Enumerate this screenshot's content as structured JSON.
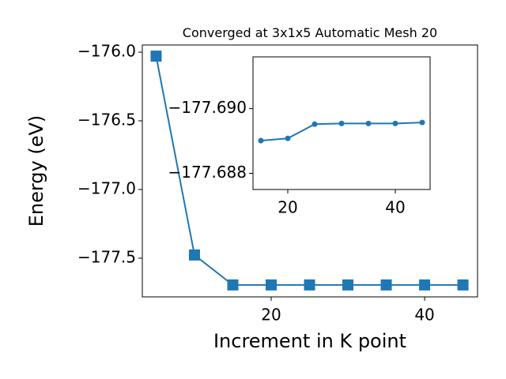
{
  "chart_data": [
    {
      "type": "line",
      "title": "Converged at 3x1x5 Automatic Mesh 20",
      "x_label": "Increment in K point",
      "y_label": "Energy (eV)",
      "marker": "square",
      "color": "#1f77b4",
      "x": [
        5,
        10,
        15,
        20,
        25,
        30,
        35,
        40,
        45
      ],
      "values": [
        -176.029,
        -177.477,
        -177.695,
        -177.695,
        -177.695,
        -177.695,
        -177.695,
        -177.695,
        -177.695
      ],
      "xlim": [
        3.2,
        46.9
      ],
      "ylim": [
        -177.782,
        -175.948
      ],
      "xticks": [
        20,
        40
      ],
      "yticks": [
        {
          "value": -176,
          "label": "−176.0"
        },
        {
          "value": -176.5,
          "label": "−176.5"
        },
        {
          "value": -177,
          "label": "−177.0"
        },
        {
          "value": -177.5,
          "label": "−177.5"
        }
      ]
    },
    {
      "type": "line",
      "marker": "circle",
      "color": "#1f77b4",
      "x": [
        15,
        20,
        25,
        30,
        35,
        40,
        45
      ],
      "values": [
        -177.68901,
        -177.68908,
        -177.68952,
        -177.68954,
        -177.68954,
        -177.68954,
        -177.68957
      ],
      "xlim": [
        13.53,
        46.47
      ],
      "ylim": [
        -177.6875,
        -177.6916
      ],
      "xticks": [
        20,
        40
      ],
      "yticks": [
        {
          "value": -177.69,
          "label": "−177.690"
        },
        {
          "value": -177.688,
          "label": "−177.688"
        }
      ]
    }
  ]
}
